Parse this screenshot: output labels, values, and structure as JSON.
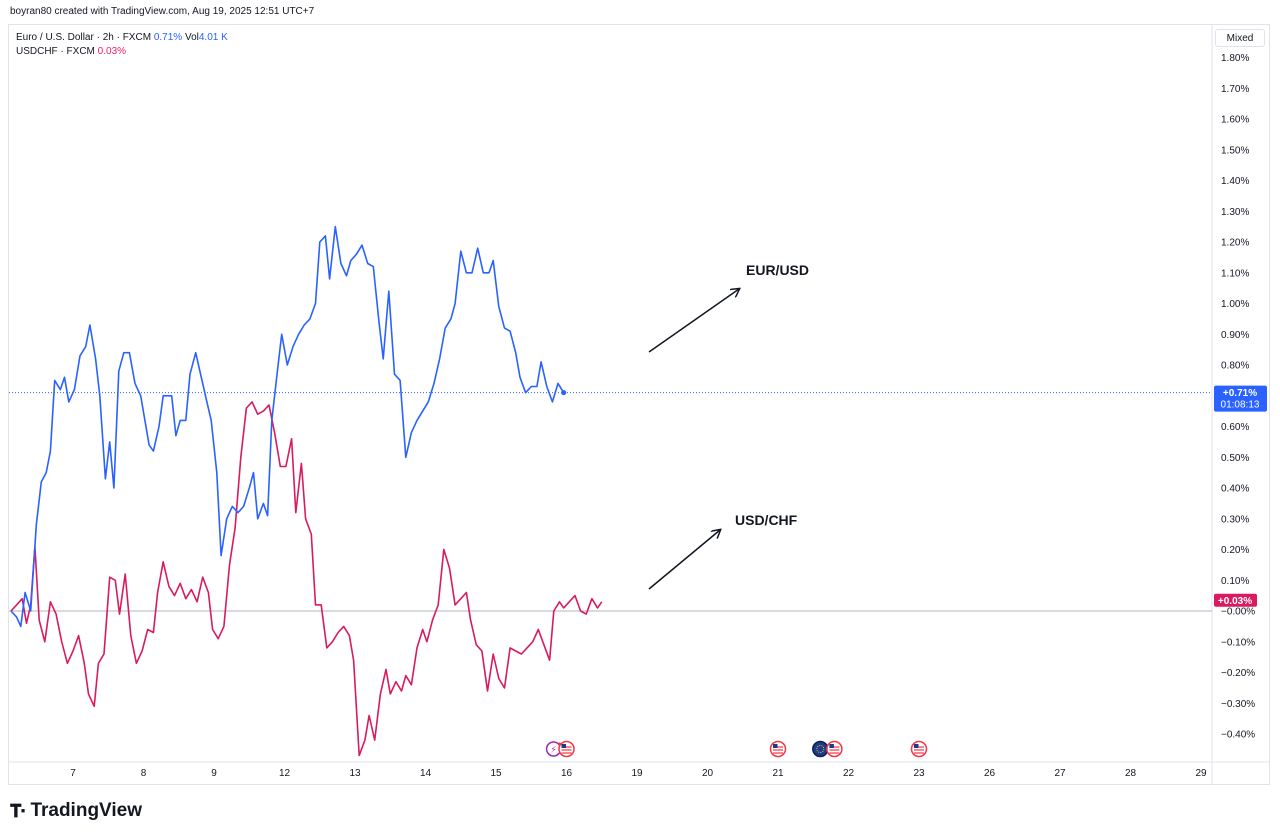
{
  "header": {
    "credit": "boyran80 created with TradingView.com, Aug 19, 2025 12:51 UTC+7"
  },
  "legend": {
    "series1": {
      "name": "Euro / U.S. Dollar · 2h · FXCM",
      "change": "0.71%",
      "vol_label": "Vol",
      "vol_value": "4.01 K"
    },
    "series2": {
      "name": "USDCHF · FXCM",
      "change": "0.03%"
    }
  },
  "scale_mode_button": "Mixed",
  "footer": {
    "brand": "TradingView"
  },
  "colors": {
    "eurusd": "#2962ff",
    "usdchf": "#d81b60",
    "axis_text": "#131722",
    "grid": "#e0e3eb"
  },
  "chart_data": {
    "type": "line",
    "y_unit": "%",
    "ylim": [
      -0.48,
      1.86
    ],
    "y_ticks": [
      "1.80%",
      "1.70%",
      "1.60%",
      "1.50%",
      "1.40%",
      "1.30%",
      "1.20%",
      "1.10%",
      "1.00%",
      "0.90%",
      "0.80%",
      "0.70%",
      "0.60%",
      "0.50%",
      "0.40%",
      "0.30%",
      "0.20%",
      "0.10%",
      "−0.00%",
      "−0.10%",
      "−0.20%",
      "−0.30%",
      "−0.40%"
    ],
    "y_tick_values": [
      1.8,
      1.7,
      1.6,
      1.5,
      1.4,
      1.3,
      1.2,
      1.1,
      1.0,
      0.9,
      0.8,
      0.7,
      0.6,
      0.5,
      0.4,
      0.3,
      0.2,
      0.1,
      0,
      -0.1,
      -0.2,
      -0.3,
      -0.4
    ],
    "x_ticks": [
      "7",
      "8",
      "9",
      "12",
      "13",
      "14",
      "15",
      "16",
      "19",
      "20",
      "21",
      "22",
      "23",
      "26",
      "27",
      "28",
      "29"
    ],
    "x_tick_index": [
      0,
      1,
      2,
      3,
      4,
      5,
      6,
      7,
      8,
      9,
      10,
      11,
      12,
      13,
      14,
      15,
      16
    ],
    "xlim": [
      -0.9,
      16.1
    ],
    "grid": false,
    "series": [
      {
        "name": "EUR/USD",
        "last_label": "+0.71%",
        "countdown": "01:08:13",
        "points": [
          [
            -0.88,
            0.0
          ],
          [
            -0.8,
            -0.02
          ],
          [
            -0.74,
            -0.05
          ],
          [
            -0.68,
            0.06
          ],
          [
            -0.6,
            0.0
          ],
          [
            -0.52,
            0.28
          ],
          [
            -0.45,
            0.42
          ],
          [
            -0.38,
            0.45
          ],
          [
            -0.32,
            0.52
          ],
          [
            -0.26,
            0.75
          ],
          [
            -0.18,
            0.72
          ],
          [
            -0.12,
            0.76
          ],
          [
            -0.06,
            0.68
          ],
          [
            0.02,
            0.72
          ],
          [
            0.1,
            0.83
          ],
          [
            0.18,
            0.86
          ],
          [
            0.24,
            0.93
          ],
          [
            0.32,
            0.82
          ],
          [
            0.38,
            0.7
          ],
          [
            0.46,
            0.43
          ],
          [
            0.52,
            0.55
          ],
          [
            0.58,
            0.4
          ],
          [
            0.65,
            0.78
          ],
          [
            0.72,
            0.84
          ],
          [
            0.8,
            0.84
          ],
          [
            0.88,
            0.74
          ],
          [
            0.96,
            0.7
          ],
          [
            1.02,
            0.62
          ],
          [
            1.08,
            0.54
          ],
          [
            1.14,
            0.52
          ],
          [
            1.22,
            0.6
          ],
          [
            1.28,
            0.7
          ],
          [
            1.34,
            0.7
          ],
          [
            1.4,
            0.7
          ],
          [
            1.46,
            0.57
          ],
          [
            1.52,
            0.62
          ],
          [
            1.6,
            0.62
          ],
          [
            1.66,
            0.77
          ],
          [
            1.74,
            0.84
          ],
          [
            1.82,
            0.76
          ],
          [
            1.9,
            0.68
          ],
          [
            1.96,
            0.62
          ],
          [
            2.04,
            0.45
          ],
          [
            2.1,
            0.18
          ],
          [
            2.18,
            0.3
          ],
          [
            2.26,
            0.34
          ],
          [
            2.34,
            0.32
          ],
          [
            2.42,
            0.34
          ],
          [
            2.5,
            0.4
          ],
          [
            2.56,
            0.45
          ],
          [
            2.62,
            0.3
          ],
          [
            2.7,
            0.35
          ],
          [
            2.76,
            0.31
          ],
          [
            2.82,
            0.62
          ],
          [
            2.9,
            0.78
          ],
          [
            2.96,
            0.9
          ],
          [
            3.04,
            0.8
          ],
          [
            3.12,
            0.86
          ],
          [
            3.2,
            0.9
          ],
          [
            3.28,
            0.93
          ],
          [
            3.36,
            0.95
          ],
          [
            3.44,
            1.0
          ],
          [
            3.5,
            1.2
          ],
          [
            3.58,
            1.22
          ],
          [
            3.64,
            1.08
          ],
          [
            3.72,
            1.25
          ],
          [
            3.8,
            1.13
          ],
          [
            3.88,
            1.09
          ],
          [
            3.94,
            1.14
          ],
          [
            4.02,
            1.16
          ],
          [
            4.1,
            1.19
          ],
          [
            4.18,
            1.13
          ],
          [
            4.26,
            1.12
          ],
          [
            4.34,
            0.94
          ],
          [
            4.4,
            0.82
          ],
          [
            4.48,
            1.04
          ],
          [
            4.56,
            0.77
          ],
          [
            4.64,
            0.75
          ],
          [
            4.72,
            0.5
          ],
          [
            4.8,
            0.58
          ],
          [
            4.88,
            0.62
          ],
          [
            4.96,
            0.65
          ],
          [
            5.04,
            0.68
          ],
          [
            5.12,
            0.74
          ],
          [
            5.2,
            0.82
          ],
          [
            5.28,
            0.92
          ],
          [
            5.36,
            0.95
          ],
          [
            5.42,
            1.0
          ],
          [
            5.5,
            1.17
          ],
          [
            5.58,
            1.1
          ],
          [
            5.66,
            1.1
          ],
          [
            5.74,
            1.18
          ],
          [
            5.82,
            1.1
          ],
          [
            5.9,
            1.1
          ],
          [
            5.96,
            1.14
          ],
          [
            6.04,
            0.99
          ],
          [
            6.12,
            0.92
          ],
          [
            6.2,
            0.91
          ],
          [
            6.28,
            0.84
          ],
          [
            6.34,
            0.76
          ],
          [
            6.42,
            0.71
          ],
          [
            6.5,
            0.73
          ],
          [
            6.58,
            0.73
          ],
          [
            6.64,
            0.81
          ],
          [
            6.72,
            0.73
          ],
          [
            6.8,
            0.68
          ],
          [
            6.88,
            0.74
          ],
          [
            6.96,
            0.71
          ]
        ]
      },
      {
        "name": "USD/CHF",
        "last_label": "+0.03%",
        "points": [
          [
            -0.88,
            0.0
          ],
          [
            -0.8,
            0.02
          ],
          [
            -0.72,
            0.04
          ],
          [
            -0.66,
            -0.04
          ],
          [
            -0.6,
            0.02
          ],
          [
            -0.54,
            0.21
          ],
          [
            -0.48,
            -0.03
          ],
          [
            -0.4,
            -0.1
          ],
          [
            -0.32,
            0.03
          ],
          [
            -0.24,
            -0.01
          ],
          [
            -0.16,
            -0.1
          ],
          [
            -0.08,
            -0.17
          ],
          [
            0.0,
            -0.13
          ],
          [
            0.08,
            -0.08
          ],
          [
            0.16,
            -0.17
          ],
          [
            0.22,
            -0.27
          ],
          [
            0.3,
            -0.31
          ],
          [
            0.36,
            -0.17
          ],
          [
            0.44,
            -0.14
          ],
          [
            0.52,
            0.11
          ],
          [
            0.6,
            0.1
          ],
          [
            0.66,
            -0.01
          ],
          [
            0.74,
            0.12
          ],
          [
            0.82,
            -0.08
          ],
          [
            0.9,
            -0.17
          ],
          [
            0.98,
            -0.13
          ],
          [
            1.06,
            -0.06
          ],
          [
            1.14,
            -0.07
          ],
          [
            1.2,
            0.06
          ],
          [
            1.28,
            0.16
          ],
          [
            1.36,
            0.08
          ],
          [
            1.44,
            0.05
          ],
          [
            1.52,
            0.09
          ],
          [
            1.6,
            0.04
          ],
          [
            1.68,
            0.07
          ],
          [
            1.76,
            0.03
          ],
          [
            1.84,
            0.11
          ],
          [
            1.92,
            0.06
          ],
          [
            1.98,
            -0.06
          ],
          [
            2.06,
            -0.09
          ],
          [
            2.14,
            -0.05
          ],
          [
            2.22,
            0.15
          ],
          [
            2.3,
            0.27
          ],
          [
            2.38,
            0.5
          ],
          [
            2.46,
            0.66
          ],
          [
            2.54,
            0.68
          ],
          [
            2.62,
            0.64
          ],
          [
            2.7,
            0.65
          ],
          [
            2.78,
            0.67
          ],
          [
            2.86,
            0.58
          ],
          [
            2.94,
            0.47
          ],
          [
            3.02,
            0.47
          ],
          [
            3.1,
            0.56
          ],
          [
            3.16,
            0.32
          ],
          [
            3.24,
            0.48
          ],
          [
            3.3,
            0.3
          ],
          [
            3.38,
            0.25
          ],
          [
            3.44,
            0.02
          ],
          [
            3.52,
            0.02
          ],
          [
            3.6,
            -0.12
          ],
          [
            3.68,
            -0.1
          ],
          [
            3.76,
            -0.07
          ],
          [
            3.84,
            -0.05
          ],
          [
            3.92,
            -0.08
          ],
          [
            3.98,
            -0.16
          ],
          [
            4.06,
            -0.47
          ],
          [
            4.14,
            -0.42
          ],
          [
            4.2,
            -0.34
          ],
          [
            4.28,
            -0.42
          ],
          [
            4.36,
            -0.27
          ],
          [
            4.44,
            -0.19
          ],
          [
            4.5,
            -0.27
          ],
          [
            4.58,
            -0.23
          ],
          [
            4.66,
            -0.26
          ],
          [
            4.72,
            -0.21
          ],
          [
            4.8,
            -0.24
          ],
          [
            4.88,
            -0.12
          ],
          [
            4.96,
            -0.06
          ],
          [
            5.02,
            -0.1
          ],
          [
            5.1,
            -0.03
          ],
          [
            5.18,
            0.02
          ],
          [
            5.26,
            0.2
          ],
          [
            5.34,
            0.14
          ],
          [
            5.42,
            0.02
          ],
          [
            5.5,
            0.04
          ],
          [
            5.58,
            0.06
          ],
          [
            5.64,
            -0.03
          ],
          [
            5.72,
            -0.11
          ],
          [
            5.8,
            -0.13
          ],
          [
            5.88,
            -0.26
          ],
          [
            5.96,
            -0.14
          ],
          [
            6.04,
            -0.22
          ],
          [
            6.12,
            -0.25
          ],
          [
            6.2,
            -0.12
          ],
          [
            6.28,
            -0.13
          ],
          [
            6.36,
            -0.14
          ],
          [
            6.44,
            -0.12
          ],
          [
            6.52,
            -0.1
          ],
          [
            6.6,
            -0.06
          ],
          [
            6.68,
            -0.11
          ],
          [
            6.76,
            -0.16
          ],
          [
            6.82,
            -0.0
          ],
          [
            6.9,
            0.03
          ],
          [
            6.96,
            0.01
          ],
          [
            7.04,
            0.03
          ],
          [
            7.12,
            0.05
          ],
          [
            7.2,
            0.0
          ],
          [
            7.28,
            -0.01
          ],
          [
            7.36,
            0.04
          ],
          [
            7.44,
            0.01
          ],
          [
            7.5,
            0.03
          ]
        ]
      }
    ],
    "annotations": [
      {
        "text": "EUR/USD"
      },
      {
        "text": "USD/CHF"
      }
    ],
    "event_markers": [
      {
        "index": 6.93,
        "kind": "lightning-flag"
      },
      {
        "index": 7.0,
        "kind": "us-flag"
      },
      {
        "index": 10.0,
        "kind": "us-flag"
      },
      {
        "index": 10.6,
        "kind": "eu-flag"
      },
      {
        "index": 10.8,
        "kind": "us-flag"
      },
      {
        "index": 12.0,
        "kind": "us-flag"
      }
    ]
  }
}
